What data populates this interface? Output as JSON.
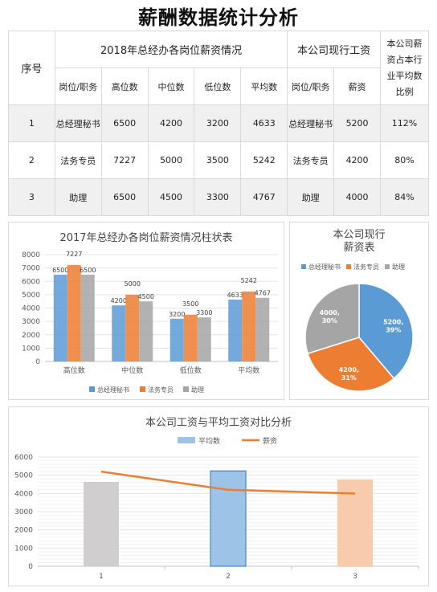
{
  "title": "薪酬数据统计分析",
  "table": {
    "col_index": "序号",
    "group_industry": "2018年总经办各岗位薪资情况",
    "group_company": "本公司现行工资",
    "col_ratio": "本公司薪资占本行业平均数比例",
    "sub_headers": [
      "岗位/职务",
      "高位数",
      "中位数",
      "低位数",
      "平均数",
      "岗位/职务",
      "薪资"
    ],
    "rows": [
      [
        "1",
        "总经理秘书",
        "6500",
        "4200",
        "3200",
        "4633",
        "总经理秘书",
        "5200",
        "112%"
      ],
      [
        "2",
        "法务专员",
        "7227",
        "5000",
        "3500",
        "5242",
        "法务专员",
        "4200",
        "80%"
      ],
      [
        "3",
        "助理",
        "6500",
        "4500",
        "3300",
        "4767",
        "助理",
        "4000",
        "84%"
      ]
    ]
  },
  "chart_data": [
    {
      "type": "bar",
      "title": "2017年总经办各岗位薪资情况柱状表",
      "categories": [
        "高位数",
        "中位数",
        "低位数",
        "平均数"
      ],
      "series": [
        {
          "name": "总经理秘书",
          "values": [
            6500,
            4200,
            3200,
            4633
          ],
          "color": "#5b9bd5",
          "labels": [
            "6500",
            "4200",
            "3200",
            "4633"
          ]
        },
        {
          "name": "法务专员",
          "values": [
            7227,
            5000,
            3500,
            5242
          ],
          "color": "#ed7d31",
          "labels": [
            "7227",
            "5000",
            "3500",
            "5242"
          ]
        },
        {
          "name": "助理",
          "values": [
            6500,
            4500,
            3300,
            4767
          ],
          "color": "#a5a5a5",
          "labels": [
            "6500",
            "4500",
            "3300",
            "4767"
          ]
        }
      ],
      "ylim": [
        0,
        8000
      ],
      "yticks": [
        "0",
        "1000",
        "2000",
        "3000",
        "4000",
        "5000",
        "6000",
        "7000",
        "8000"
      ],
      "grid": true,
      "legend": "bottom"
    },
    {
      "type": "pie",
      "title": "本公司现行薪资表",
      "labels": [
        "总经理秘书",
        "法务专员",
        "助理"
      ],
      "values": [
        5200,
        4200,
        4000
      ],
      "slice_labels": [
        [
          "5200,",
          "39%"
        ],
        [
          "4200,",
          "31%"
        ],
        [
          "4000,",
          "30%"
        ]
      ],
      "colors": [
        "#5b9bd5",
        "#ed7d31",
        "#a5a5a5"
      ],
      "legend": "top"
    },
    {
      "type": "bar",
      "title": "本公司工资与平均工资对比分析",
      "categories": [
        "1",
        "2",
        "3"
      ],
      "series": [
        {
          "name": "平均数",
          "type": "bar",
          "values": [
            4633,
            5242,
            4767
          ],
          "colors": [
            "#d0cece",
            "#9dc3e6",
            "#f8cbad"
          ]
        },
        {
          "name": "薪资",
          "type": "line",
          "values": [
            5200,
            4200,
            4000
          ],
          "color": "#ed7d31"
        }
      ],
      "ylim": [
        0,
        6000
      ],
      "yticks": [
        "0",
        "1000",
        "2000",
        "3000",
        "4000",
        "5000",
        "6000"
      ],
      "grid": true,
      "legend": "top"
    }
  ]
}
